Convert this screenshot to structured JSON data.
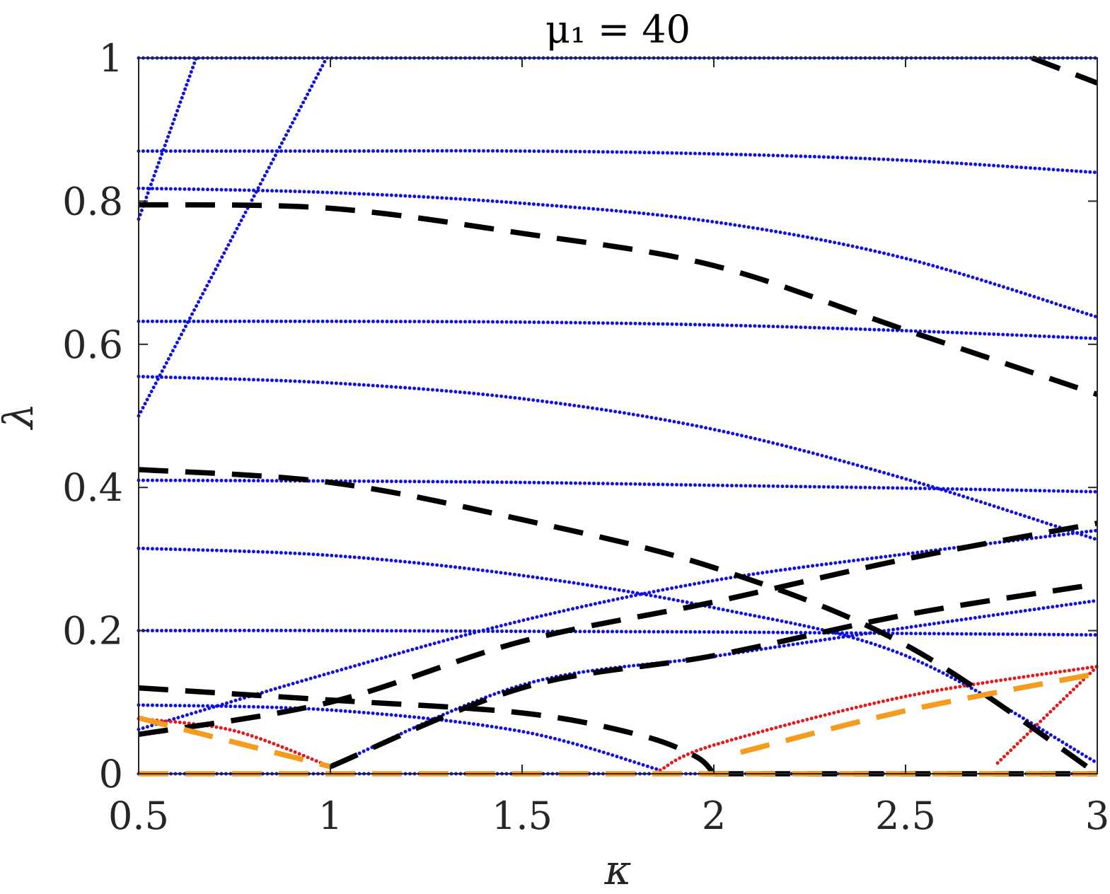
{
  "chart_data": {
    "type": "line",
    "title": "μ₁ = 40",
    "xlabel": "κ",
    "ylabel": "λ",
    "xlim": [
      0.5,
      3
    ],
    "ylim": [
      0,
      1
    ],
    "xticks": [
      0.5,
      1,
      1.5,
      2,
      2.5,
      3
    ],
    "xtick_labels": [
      "0.5",
      "1",
      "1.5",
      "2",
      "2.5",
      "3"
    ],
    "yticks": [
      0,
      0.2,
      0.4,
      0.6,
      0.8,
      1
    ],
    "ytick_labels": [
      "0",
      "0.2",
      "0.4",
      "0.6",
      "0.8",
      "1"
    ],
    "grid": false,
    "colors": {
      "blue": "#1010e0",
      "red": "#e41a1a",
      "black": "#000000",
      "orange": "#f39c1e",
      "axis": "#262626"
    },
    "series": [
      {
        "style": "blue-dotted",
        "x": [
          0.5,
          3.0
        ],
        "y": [
          1.0,
          1.0
        ]
      },
      {
        "style": "blue-dotted",
        "x": [
          0.5,
          0.65
        ],
        "y": [
          0.775,
          1.0
        ]
      },
      {
        "style": "blue-dotted",
        "x": [
          0.5,
          0.99
        ],
        "y": [
          0.5,
          1.0
        ]
      },
      {
        "style": "blue-dotted",
        "x": [
          0.5,
          1.0,
          1.5,
          2.0,
          2.5,
          3.0
        ],
        "y": [
          0.87,
          0.87,
          0.87,
          0.866,
          0.857,
          0.84
        ]
      },
      {
        "style": "blue-dotted",
        "x": [
          0.5,
          1.0,
          1.5,
          2.0,
          2.5,
          3.0
        ],
        "y": [
          0.818,
          0.812,
          0.797,
          0.771,
          0.72,
          0.638
        ]
      },
      {
        "style": "blue-dotted",
        "x": [
          0.5,
          1.0,
          1.5,
          2.0,
          2.5,
          3.0
        ],
        "y": [
          0.632,
          0.632,
          0.631,
          0.627,
          0.619,
          0.608
        ]
      },
      {
        "style": "blue-dotted",
        "x": [
          0.5,
          1.0,
          1.5,
          2.0,
          2.5,
          3.0
        ],
        "y": [
          0.555,
          0.546,
          0.524,
          0.481,
          0.412,
          0.327
        ]
      },
      {
        "style": "blue-dotted",
        "x": [
          0.5,
          1.0,
          1.5,
          2.0,
          2.5,
          3.0
        ],
        "y": [
          0.41,
          0.409,
          0.407,
          0.403,
          0.399,
          0.394
        ]
      },
      {
        "style": "blue-dotted",
        "x": [
          0.5,
          1.0,
          1.5,
          2.0,
          2.5,
          3.0
        ],
        "y": [
          0.315,
          0.305,
          0.277,
          0.232,
          0.165,
          0.015
        ]
      },
      {
        "style": "blue-dotted",
        "x": [
          0.5,
          1.0,
          1.5,
          2.0,
          2.5,
          3.0
        ],
        "y": [
          0.2,
          0.2,
          0.199,
          0.198,
          0.196,
          0.194
        ]
      },
      {
        "style": "blue-dotted",
        "x": [
          0.5,
          1.0,
          1.5,
          2.0,
          2.5,
          3.0
        ],
        "y": [
          0.062,
          0.141,
          0.214,
          0.27,
          0.307,
          0.34
        ]
      },
      {
        "style": "blue-dotted",
        "x": [
          0.5,
          1.0,
          1.5,
          1.86
        ],
        "y": [
          0.096,
          0.089,
          0.059,
          0.005
        ]
      },
      {
        "style": "blue-dotted",
        "x": [
          1.0,
          1.5,
          2.0,
          2.5,
          3.0
        ],
        "y": [
          0.01,
          0.124,
          0.164,
          0.204,
          0.242
        ]
      },
      {
        "style": "blue-dotted",
        "x": [
          0.5,
          3.0
        ],
        "y": [
          0.0,
          0.0
        ]
      },
      {
        "style": "red-dotted",
        "x": [
          0.5,
          0.75,
          1.0
        ],
        "y": [
          0.077,
          0.06,
          0.01
        ]
      },
      {
        "style": "red-dotted",
        "x": [
          1.86,
          2.0,
          2.5,
          3.0
        ],
        "y": [
          0.005,
          0.04,
          0.108,
          0.15
        ]
      },
      {
        "style": "red-dotted",
        "x": [
          2.74,
          3.0
        ],
        "y": [
          0.015,
          0.15
        ]
      },
      {
        "style": "black-dashed",
        "x": [
          0.5,
          1.0,
          1.5,
          2.0,
          2.5,
          3.0
        ],
        "y": [
          0.795,
          0.79,
          0.755,
          0.71,
          0.62,
          0.53
        ]
      },
      {
        "style": "black-dashed",
        "x": [
          0.5,
          1.0,
          1.5,
          2.0,
          2.5,
          3.0
        ],
        "y": [
          0.425,
          0.407,
          0.355,
          0.288,
          0.18,
          0.0
        ]
      },
      {
        "style": "black-dashed",
        "x": [
          0.5,
          1.0,
          1.5,
          2.0,
          2.5,
          3.0
        ],
        "y": [
          0.055,
          0.1,
          0.185,
          0.24,
          0.3,
          0.35
        ]
      },
      {
        "style": "black-dashed",
        "x": [
          0.5,
          1.0,
          1.5,
          1.8,
          1.95,
          2.0
        ],
        "y": [
          0.12,
          0.103,
          0.085,
          0.055,
          0.025,
          0.0
        ]
      },
      {
        "style": "black-dashed",
        "x": [
          1.0,
          1.5,
          2.0,
          2.5,
          3.0
        ],
        "y": [
          0.01,
          0.12,
          0.165,
          0.222,
          0.265
        ]
      },
      {
        "style": "black-dashed",
        "x": [
          2.83,
          3.0
        ],
        "y": [
          1.0,
          0.965
        ]
      },
      {
        "style": "black-dashed",
        "x": [
          2.0,
          3.0
        ],
        "y": [
          0.0,
          0.0
        ]
      },
      {
        "style": "orange-dashed",
        "x": [
          0.5,
          1.0
        ],
        "y": [
          0.078,
          0.01
        ]
      },
      {
        "style": "orange-dashed",
        "x": [
          2.07,
          2.5,
          3.0
        ],
        "y": [
          0.03,
          0.088,
          0.14
        ]
      },
      {
        "style": "orange-dashed",
        "x": [
          0.5,
          3.0
        ],
        "y": [
          0.0,
          0.0
        ]
      }
    ]
  }
}
